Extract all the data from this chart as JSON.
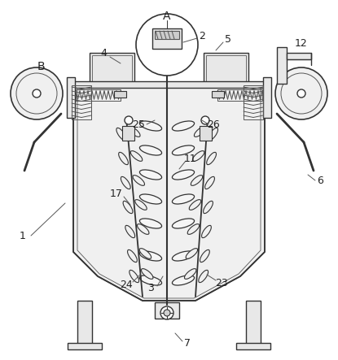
{
  "background_color": "#ffffff",
  "line_color": "#555555",
  "dark_line": "#333333",
  "light_line": "#888888",
  "figsize": [
    4.15,
    4.43
  ],
  "dpi": 100
}
